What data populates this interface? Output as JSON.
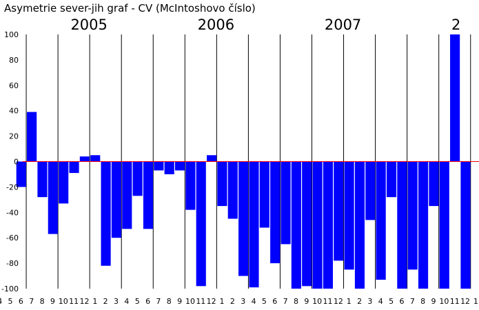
{
  "chart_data": {
    "type": "bar",
    "title": "Asymetrie sever-jih  graf -  CV (McIntoshovo číslo)",
    "year_labels": [
      {
        "label": "2005",
        "month_index": 7
      },
      {
        "label": "2006",
        "month_index": 19
      },
      {
        "label": "2007",
        "month_index": 31
      },
      {
        "label": "2",
        "month_index": 43
      }
    ],
    "ylim": [
      -100,
      100
    ],
    "yticks": [
      "100",
      "80",
      "60",
      "40",
      "20",
      "0",
      "-20",
      "-40",
      "-60",
      "-80",
      "-100"
    ],
    "grid": true,
    "grid_every_months": 3,
    "zero_line": true,
    "bar_color": "#0000ff",
    "zero_line_color": "#ff0000",
    "grid_color": "#000000",
    "categories": [
      "4",
      "5",
      "6",
      "7",
      "8",
      "9",
      "10",
      "11",
      "12",
      "1",
      "2",
      "3",
      "4",
      "5",
      "6",
      "7",
      "8",
      "9",
      "10",
      "11",
      "12",
      "1",
      "2",
      "3",
      "4",
      "5",
      "6",
      "7",
      "8",
      "9",
      "10",
      "11",
      "12",
      "1",
      "2",
      "3",
      "4",
      "5",
      "6",
      "7",
      "8",
      "9",
      "10",
      "11",
      "12",
      "1"
    ],
    "values": [
      null,
      null,
      -20,
      39,
      -28,
      -57,
      -33,
      -9,
      4,
      5,
      -82,
      -60,
      -53,
      -27,
      -53,
      -7,
      -10,
      -7,
      -38,
      -98,
      5,
      -35,
      -45,
      -90,
      -99,
      -52,
      -80,
      -65,
      -100,
      -98,
      -100,
      -100,
      -78,
      -85,
      -100,
      -46,
      -93,
      -28,
      -100,
      -85,
      -100,
      -35,
      -100,
      100,
      -100,
      null
    ]
  }
}
